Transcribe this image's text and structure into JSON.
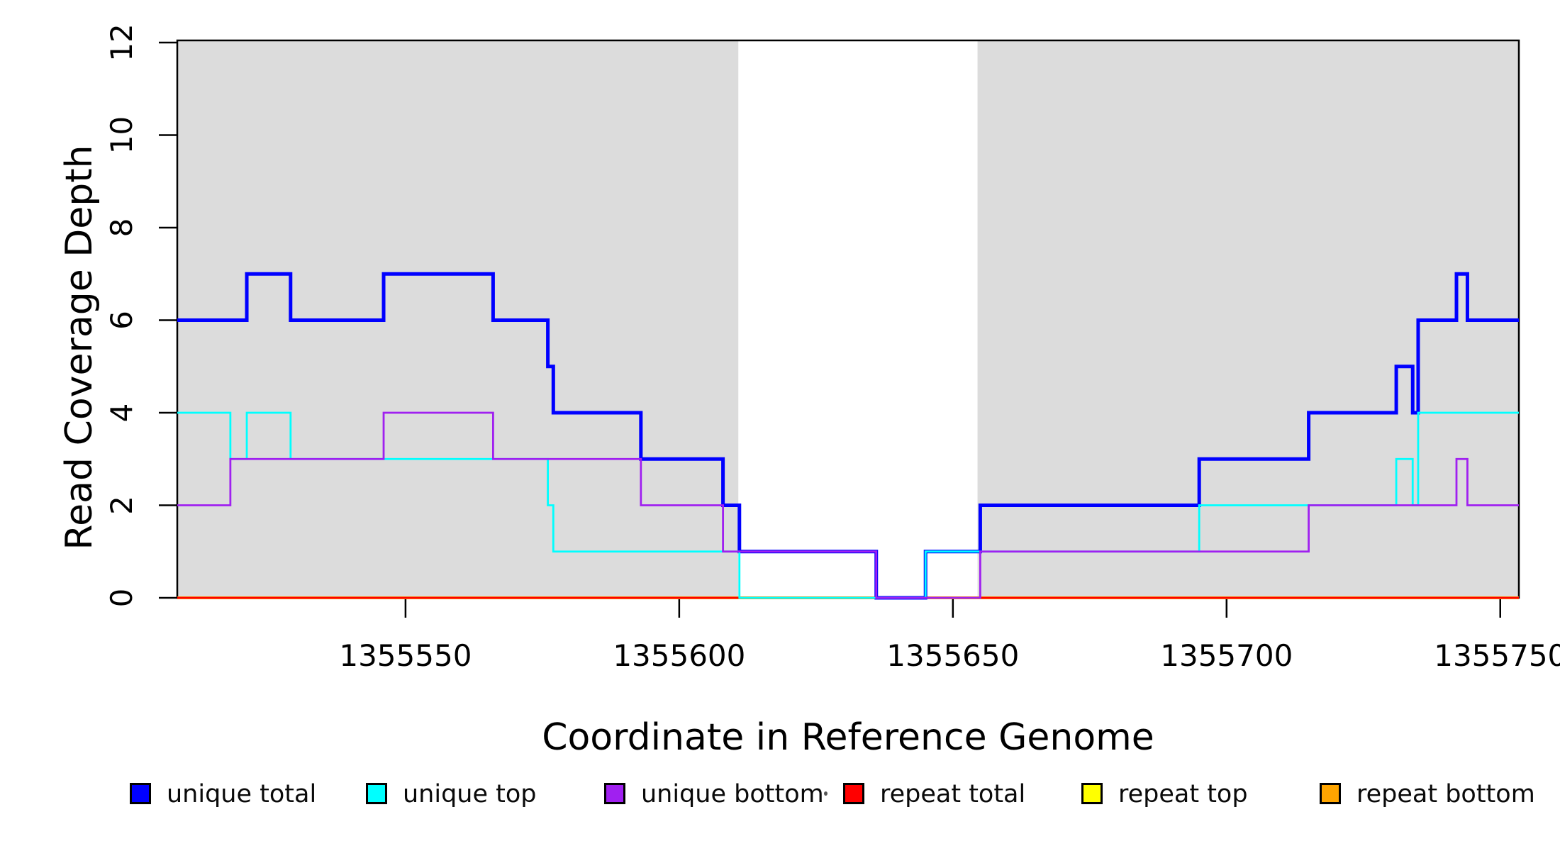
{
  "chart_data": {
    "type": "line",
    "subtype": "step",
    "title": "",
    "xlabel": "Coordinate in Reference Genome",
    "ylabel": "Read Coverage Depth",
    "xlim": [
      1355508.3,
      1355753.4
    ],
    "ylim": [
      0,
      12
    ],
    "x_ticks": [
      1355550,
      1355600,
      1355650,
      1355700,
      1355750
    ],
    "y_ticks": [
      0,
      2,
      4,
      6,
      8,
      10,
      12
    ],
    "grid": false,
    "background_color": "#FFFFFF",
    "shaded_region_color": "#DCDCDC",
    "shaded_regions": [
      {
        "x0": 1355508.3,
        "x1": 1355610.8
      },
      {
        "x0": 1355654.5,
        "x1": 1355753.4
      }
    ],
    "legend_position": "bottom",
    "series": [
      {
        "name": "unique total",
        "color": "#0000FF",
        "line_width": 5,
        "points": [
          [
            1355508.3,
            6
          ],
          [
            1355521,
            7
          ],
          [
            1355529,
            6
          ],
          [
            1355546,
            7
          ],
          [
            1355566,
            6
          ],
          [
            1355576,
            5
          ],
          [
            1355577,
            4
          ],
          [
            1355593,
            3
          ],
          [
            1355608,
            2
          ],
          [
            1355611,
            1
          ],
          [
            1355636,
            0
          ],
          [
            1355645,
            1
          ],
          [
            1355655,
            2
          ],
          [
            1355695,
            3
          ],
          [
            1355715,
            4
          ],
          [
            1355731,
            5
          ],
          [
            1355734,
            4
          ],
          [
            1355735,
            6
          ],
          [
            1355742,
            7
          ],
          [
            1355744,
            6
          ]
        ]
      },
      {
        "name": "unique top",
        "color": "#00FFFF",
        "line_width": 2.8,
        "points": [
          [
            1355508.3,
            4
          ],
          [
            1355518,
            3
          ],
          [
            1355521,
            4
          ],
          [
            1355529,
            3
          ],
          [
            1355576,
            2
          ],
          [
            1355577,
            1
          ],
          [
            1355611,
            0
          ],
          [
            1355645,
            1
          ],
          [
            1355695,
            2
          ],
          [
            1355731,
            3
          ],
          [
            1355734,
            2
          ],
          [
            1355735,
            4
          ]
        ]
      },
      {
        "name": "unique bottom",
        "color": "#A020F0",
        "line_width": 2.8,
        "points": [
          [
            1355508.3,
            2
          ],
          [
            1355518,
            3
          ],
          [
            1355546,
            4
          ],
          [
            1355566,
            3
          ],
          [
            1355593,
            2
          ],
          [
            1355608,
            1
          ],
          [
            1355636,
            0
          ],
          [
            1355655,
            1
          ],
          [
            1355715,
            2
          ],
          [
            1355742,
            3
          ],
          [
            1355744,
            2
          ]
        ]
      },
      {
        "name": "repeat total",
        "color": "#FF0000",
        "line_width": 2.8,
        "points": [
          [
            1355508.3,
            0
          ]
        ]
      },
      {
        "name": "repeat top",
        "color": "#FFFF00",
        "line_width": 2.8,
        "points": [
          [
            1355508.3,
            0
          ]
        ]
      },
      {
        "name": "repeat bottom",
        "color": "#FFA500",
        "line_width": 4,
        "points": [
          [
            1355508.3,
            0
          ]
        ]
      }
    ],
    "legend": [
      {
        "label": "unique total",
        "color": "#0000FF"
      },
      {
        "label": "unique top",
        "color": "#00FFFF"
      },
      {
        "label": "unique bottom",
        "color": "#A020F0"
      },
      {
        "label": "repeat total",
        "color": "#FF0000"
      },
      {
        "label": "repeat top",
        "color": "#FFFF00"
      },
      {
        "label": "repeat bottom",
        "color": "#FFA500"
      }
    ]
  }
}
